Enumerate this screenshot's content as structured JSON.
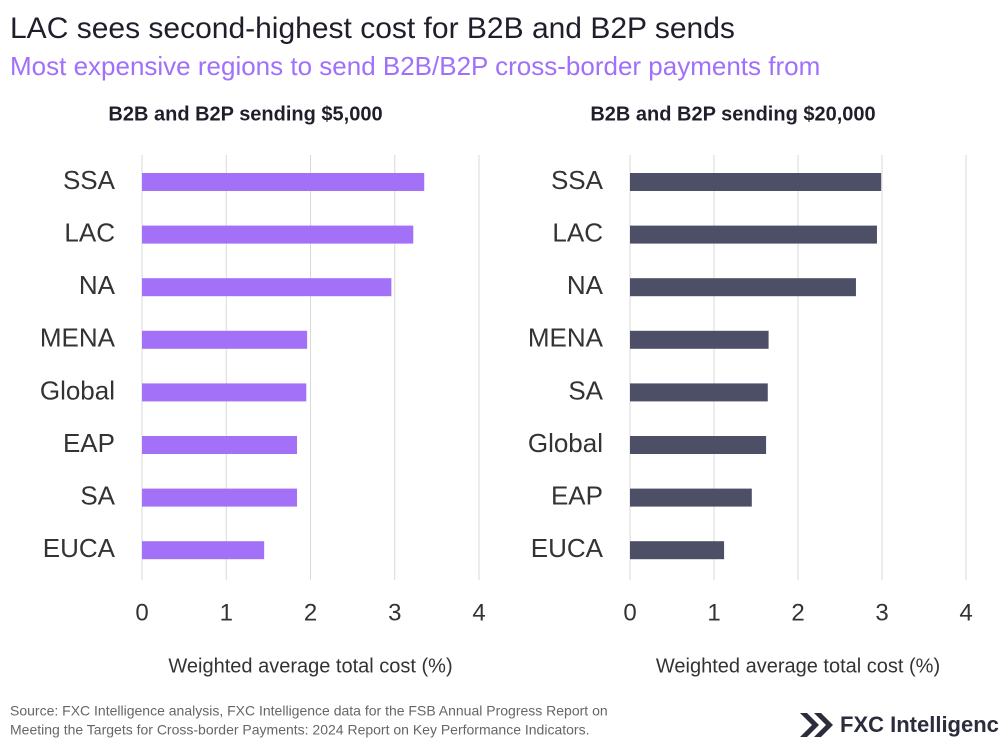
{
  "title": "LAC sees second-highest cost for B2B and B2P sends",
  "subtitle": "Most expensive regions to send B2B/B2P cross-border payments from",
  "source": [
    "Source: FXC Intelligence analysis, FXC Intelligence data for the FSB Annual Progress Report on",
    "Meeting the Targets for Cross-border Payments: 2024 Report on Key Performance Indicators."
  ],
  "brand": "FXC Intelligence",
  "chart_data": [
    {
      "type": "bar",
      "orientation": "horizontal",
      "title": "B2B and B2P sending $5,000",
      "categories": [
        "SSA",
        "LAC",
        "NA",
        "MENA",
        "Global",
        "EAP",
        "SA",
        "EUCA"
      ],
      "values": [
        3.35,
        3.22,
        2.96,
        1.96,
        1.95,
        1.84,
        1.84,
        1.45
      ],
      "color": "#a371f7",
      "xlabel": "Weighted average total cost (%)",
      "xlim": [
        0,
        4
      ],
      "xticks": [
        0,
        1,
        2,
        3,
        4
      ],
      "grid": true
    },
    {
      "type": "bar",
      "orientation": "horizontal",
      "title": "B2B and B2P sending $20,000",
      "categories": [
        "SSA",
        "LAC",
        "NA",
        "MENA",
        "SA",
        "Global",
        "EAP",
        "EUCA"
      ],
      "values": [
        2.99,
        2.94,
        2.69,
        1.65,
        1.64,
        1.62,
        1.45,
        1.12
      ],
      "color": "#4c4f66",
      "xlabel": "Weighted average total cost (%)",
      "xlim": [
        0,
        4
      ],
      "xticks": [
        0,
        1,
        2,
        3,
        4
      ],
      "grid": true
    }
  ]
}
